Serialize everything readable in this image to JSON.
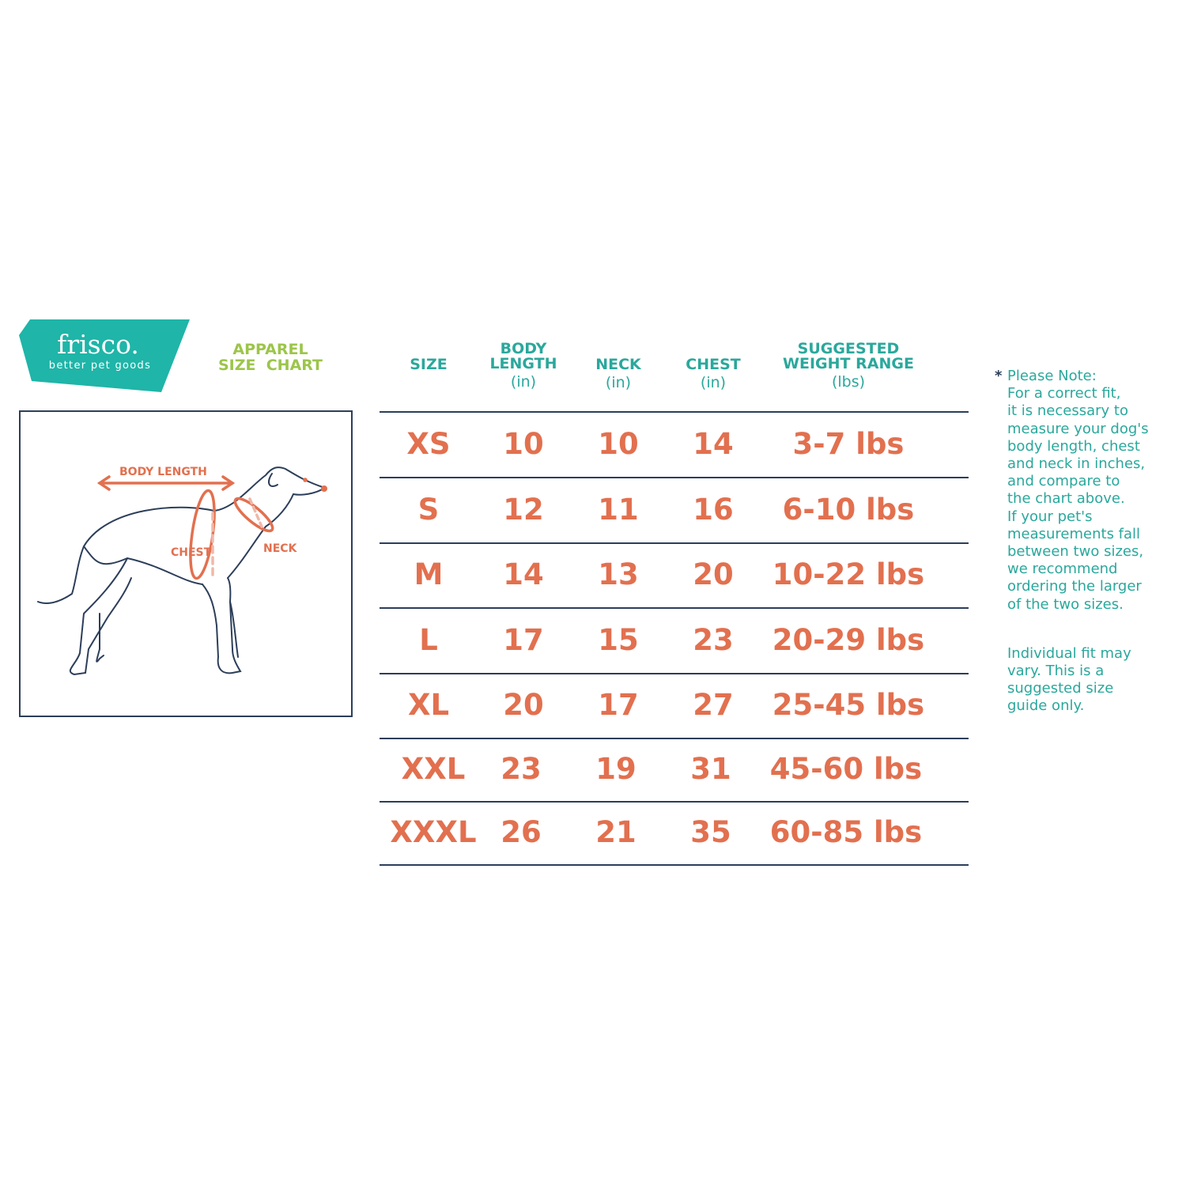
{
  "brand": {
    "name": "frisco.",
    "tagline": "better pet goods",
    "color": "#1fb5a8"
  },
  "title": {
    "line1": "APPAREL",
    "line2": "SIZE  CHART",
    "color": "#9cc54a"
  },
  "diagram": {
    "labels": {
      "body_length": "BODY LENGTH",
      "chest": "CHEST",
      "neck": "NECK"
    },
    "arrow_color": "#e2704f"
  },
  "table": {
    "headers": [
      {
        "label": "SIZE",
        "unit": ""
      },
      {
        "label": "BODY\nLENGTH",
        "unit": "(in)"
      },
      {
        "label": "NECK",
        "unit": "(in)"
      },
      {
        "label": "CHEST",
        "unit": "(in)"
      },
      {
        "label": "SUGGESTED\nWEIGHT RANGE",
        "unit": "(lbs)"
      }
    ],
    "rows": [
      [
        "XS",
        "10",
        "10",
        "14",
        "3-7 lbs"
      ],
      [
        "S",
        "12",
        "11",
        "16",
        "6-10 lbs"
      ],
      [
        "M",
        "14",
        "13",
        "20",
        "10-22 lbs"
      ],
      [
        "L",
        "17",
        "15",
        "23",
        "20-29 lbs"
      ],
      [
        "XL",
        "20",
        "17",
        "27",
        "25-45 lbs"
      ],
      [
        "XXL",
        "23",
        "19",
        "31",
        "45-60 lbs"
      ],
      [
        "XXXL",
        "26",
        "21",
        "35",
        "60-85 lbs"
      ]
    ],
    "header_color": "#2aa89c",
    "value_color": "#e2704f"
  },
  "note": {
    "asterisk": "*",
    "paragraph1": "Please Note:\nFor a correct fit,\nit is necessary to\nmeasure your dog's\nbody length, chest\nand neck in inches,\nand compare to\nthe chart above.\nIf your pet's\nmeasurements fall\nbetween two sizes,\nwe recommend\nordering the larger\nof the two sizes.",
    "paragraph2": "Individual fit may\nvary. This is a\nsuggested size\nguide only."
  }
}
